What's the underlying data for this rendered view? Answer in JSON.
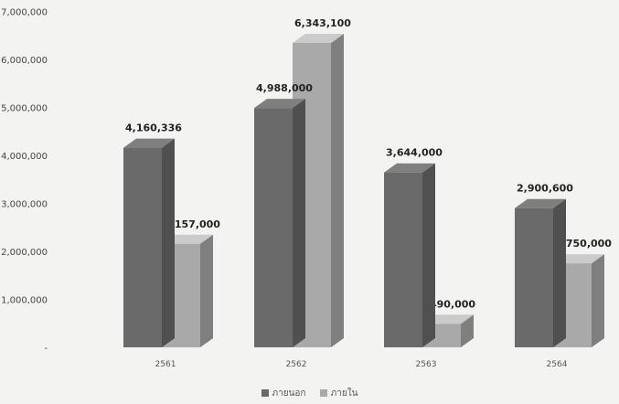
{
  "chart_data": {
    "type": "bar",
    "categories": [
      "2561",
      "2562",
      "2563",
      "2564"
    ],
    "series": [
      {
        "name": "ภายนอก",
        "values": [
          4160336,
          4988000,
          3644000,
          2900600
        ],
        "labels": [
          "4,160,336",
          "4,988,000",
          "3,644,000",
          "2,900,600"
        ],
        "color": "#6a6a6a"
      },
      {
        "name": "ภายใน",
        "values": [
          2157000,
          6343100,
          490000,
          1750000
        ],
        "labels": [
          "2,157,000",
          "6,343,100",
          "490,000",
          "1,750,000"
        ],
        "color": "#a9a9a9"
      }
    ],
    "y_ticks": [
      "7,000,000",
      "6,000,000",
      "5,000,000",
      "4,000,000",
      "3,000,000",
      "2,000,000",
      "1,000,000",
      "-"
    ],
    "ylim": [
      0,
      7000000
    ],
    "grid": false,
    "legend": "bottom"
  }
}
